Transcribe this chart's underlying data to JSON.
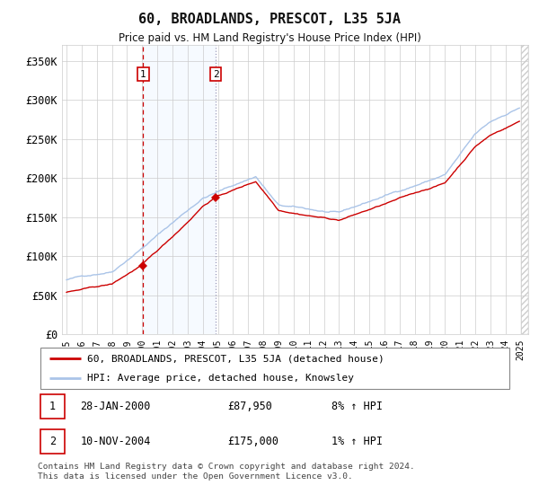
{
  "title": "60, BROADLANDS, PRESCOT, L35 5JA",
  "subtitle": "Price paid vs. HM Land Registry's House Price Index (HPI)",
  "ylabel_ticks": [
    "£0",
    "£50K",
    "£100K",
    "£150K",
    "£200K",
    "£250K",
    "£300K",
    "£350K"
  ],
  "ylim": [
    0,
    370000
  ],
  "sale1": {
    "date_num": 2000.07,
    "price": 87950,
    "label": "1"
  },
  "sale2": {
    "date_num": 2004.86,
    "price": 175000,
    "label": "2"
  },
  "legend_line1": "60, BROADLANDS, PRESCOT, L35 5JA (detached house)",
  "legend_line2": "HPI: Average price, detached house, Knowsley",
  "table_rows": [
    {
      "num": "1",
      "date": "28-JAN-2000",
      "price": "£87,950",
      "hpi": "8% ↑ HPI"
    },
    {
      "num": "2",
      "date": "10-NOV-2004",
      "price": "£175,000",
      "hpi": "1% ↑ HPI"
    }
  ],
  "footer": "Contains HM Land Registry data © Crown copyright and database right 2024.\nThis data is licensed under the Open Government Licence v3.0.",
  "hpi_color": "#aac4e8",
  "sale_color": "#cc0000",
  "vline1_color": "#cc0000",
  "vline2_color": "#8888aa",
  "shade_color": "#ddeeff",
  "box_color": "#cc0000",
  "background_color": "#ffffff",
  "grid_color": "#cccccc"
}
